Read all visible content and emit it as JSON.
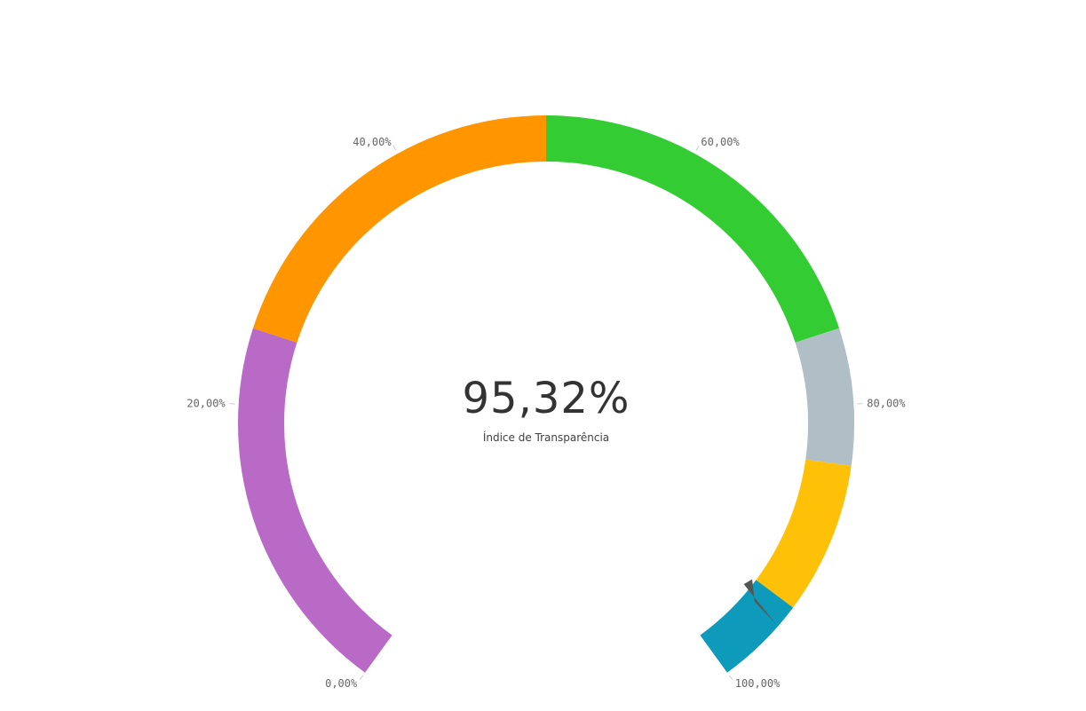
{
  "chart_data": {
    "type": "gauge",
    "value": 95.32,
    "value_label": "95,32%",
    "title": "Índice de Transparência",
    "min": 0,
    "max": 100,
    "ticks": [
      {
        "value": 0,
        "label": "0,00%"
      },
      {
        "value": 20,
        "label": "20,00%"
      },
      {
        "value": 40,
        "label": "40,00%"
      },
      {
        "value": 60,
        "label": "60,00%"
      },
      {
        "value": 80,
        "label": "80,00%"
      },
      {
        "value": 100,
        "label": "100,00%"
      }
    ],
    "segments": [
      {
        "from": 0,
        "to": 25,
        "color": "#b86ac6"
      },
      {
        "from": 25,
        "to": 50,
        "color": "#ff9600"
      },
      {
        "from": 50,
        "to": 75,
        "color": "#33cc33"
      },
      {
        "from": 75,
        "to": 84,
        "color": "#b0bec5"
      },
      {
        "from": 84,
        "to": 94,
        "color": "#ffc107"
      },
      {
        "from": 94,
        "to": 100,
        "color": "#0e9aba"
      }
    ],
    "needle_color": "#555555"
  }
}
